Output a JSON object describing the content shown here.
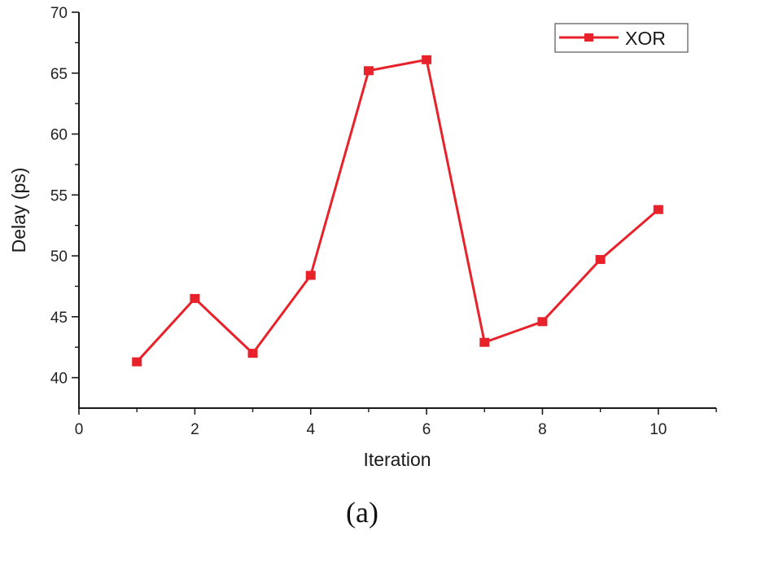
{
  "colors": {
    "series": "#e8222a",
    "axis": "#1a1a1a",
    "text": "#222222",
    "legend_border": "#555555",
    "background": "#ffffff"
  },
  "caption": "(a)",
  "chart_data": {
    "type": "line",
    "title": "",
    "xlabel": "Iteration",
    "ylabel": "Delay (ps)",
    "xlim": [
      0,
      11
    ],
    "ylim": [
      37.5,
      70
    ],
    "x_ticks": [
      0,
      2,
      4,
      6,
      8,
      10
    ],
    "x_minor_ticks": [
      1,
      3,
      5,
      7,
      9,
      11
    ],
    "y_ticks": [
      40,
      45,
      50,
      55,
      60,
      65,
      70
    ],
    "y_minor_ticks": [
      42.5,
      47.5,
      52.5,
      57.5,
      62.5,
      67.5
    ],
    "grid": false,
    "legend_position": "top-right",
    "x": [
      1,
      2,
      3,
      4,
      5,
      6,
      7,
      8,
      9,
      10
    ],
    "series": [
      {
        "name": "XOR",
        "marker": "square",
        "color": "#e8222a",
        "values": [
          41.3,
          46.5,
          42.0,
          48.4,
          65.2,
          66.1,
          42.9,
          44.6,
          49.7,
          53.8
        ]
      }
    ]
  }
}
